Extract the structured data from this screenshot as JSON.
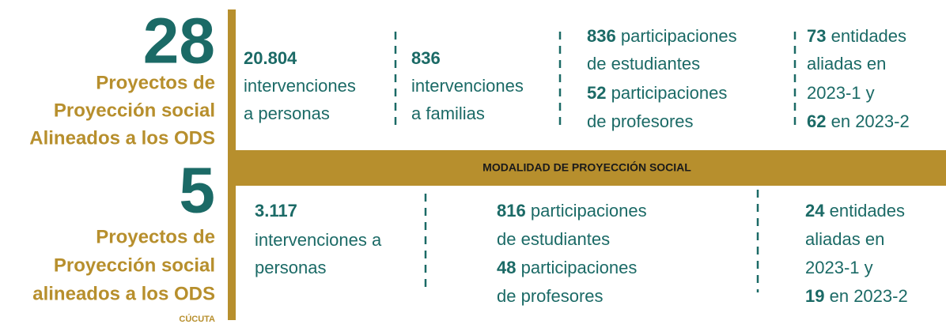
{
  "left": {
    "top": {
      "number": "28",
      "lines": [
        "Proyectos de",
        "Proyección social",
        "Alineados a los ODS"
      ]
    },
    "bottom": {
      "number": "5",
      "lines": [
        "Proyectos de",
        "Proyección social",
        "alineados a los ODS"
      ],
      "place": "CÚCUTA"
    }
  },
  "band": "MODALIDAD DE PROYECCIÓN SOCIAL",
  "top_blocks": [
    [
      {
        "bold": "20.804"
      },
      {
        "text": "intervenciones"
      },
      {
        "text": "a personas"
      }
    ],
    [
      {
        "bold": "836"
      },
      {
        "text": "intervenciones"
      },
      {
        "text": "a familias"
      }
    ],
    [
      {
        "bold": "836",
        "text": "participaciones"
      },
      {
        "text": "de estudiantes"
      },
      {
        "bold": "52",
        "text": "participaciones"
      },
      {
        "text": "de profesores"
      }
    ],
    [
      {
        "bold": "73",
        "text": "entidades"
      },
      {
        "text": "aliadas en"
      },
      {
        "text": "2023-1 y"
      },
      {
        "bold": "62",
        "text": "en 2023-2"
      }
    ]
  ],
  "bottom_blocks": [
    [
      {
        "bold": "3.117"
      },
      {
        "text": "intervenciones a"
      },
      {
        "text": "personas"
      }
    ],
    [
      {
        "bold": "816",
        "text": "participaciones"
      },
      {
        "text": "de estudiantes"
      },
      {
        "bold": "48",
        "text": "participaciones"
      },
      {
        "text": "de profesores"
      }
    ],
    [
      {
        "bold": "24",
        "text": "entidades"
      },
      {
        "text": "aliadas en"
      },
      {
        "text": "2023-1 y"
      },
      {
        "bold": "19",
        "text": "en 2023-2"
      }
    ]
  ]
}
